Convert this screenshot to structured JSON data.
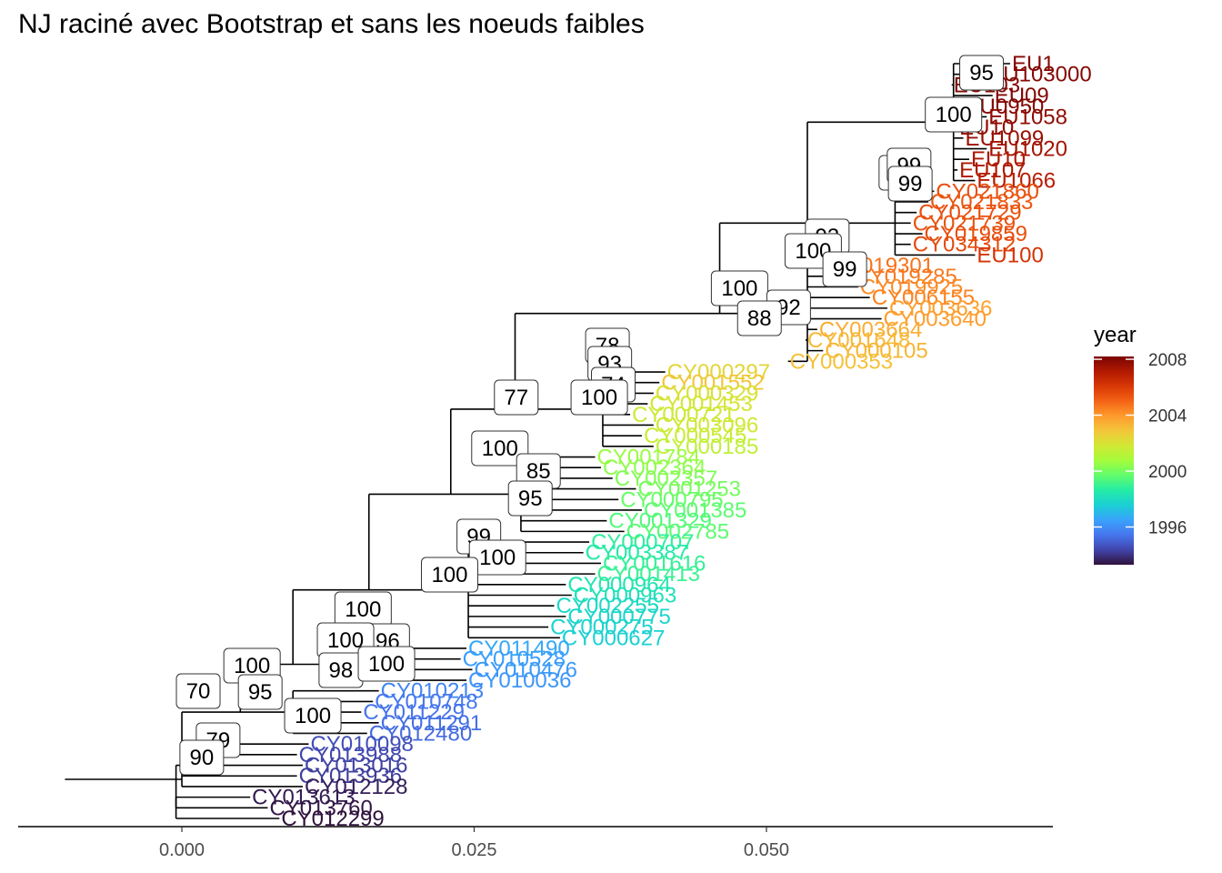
{
  "title": "NJ raciné avec Bootstrap et sans les noeuds faibles",
  "colors": {
    "branch": "#000000",
    "axis_tick_text": "#4d4d4d",
    "gradient": [
      "#30123b",
      "#4145ab",
      "#4675ed",
      "#39a2fc",
      "#1bcfd4",
      "#24eca6",
      "#61fc6c",
      "#a4fc3b",
      "#d1e834",
      "#f3c63a",
      "#fe9b2d",
      "#f36315",
      "#d93806",
      "#b11901",
      "#7a0403"
    ]
  },
  "chart_data": {
    "type": "tree",
    "xlim": [
      -0.014,
      0.0745
    ],
    "x_ticks": [
      0.0,
      0.025,
      0.05
    ],
    "x_tick_labels": [
      "0.000",
      "0.025",
      "0.050"
    ],
    "legend": {
      "title": "year",
      "position": "right",
      "range": [
        1993.3,
        2008.2
      ],
      "ticks": [
        1996,
        2000,
        2004,
        2008
      ],
      "tick_labels": [
        "1996",
        "2000",
        "2004",
        "2008"
      ]
    },
    "tips": [
      {
        "label": "EU1",
        "x": 0.071,
        "year": 2008
      },
      {
        "label": "EU103000",
        "x": 0.069,
        "year": 2008
      },
      {
        "label": "EU103",
        "x": 0.066,
        "year": 2008
      },
      {
        "label": "EU09",
        "x": 0.0695,
        "year": 2008
      },
      {
        "label": "EU0950",
        "x": 0.067,
        "year": 2008
      },
      {
        "label": "EU1058",
        "x": 0.069,
        "year": 2007.8
      },
      {
        "label": "EU10",
        "x": 0.0665,
        "year": 2007.8
      },
      {
        "label": "EU1099",
        "x": 0.067,
        "year": 2007.6
      },
      {
        "label": "EU1020",
        "x": 0.069,
        "year": 2007.4
      },
      {
        "label": "EU10",
        "x": 0.0675,
        "year": 2007.2
      },
      {
        "label": "EU107",
        "x": 0.0665,
        "year": 2007.2
      },
      {
        "label": "EU1066",
        "x": 0.068,
        "year": 2007
      },
      {
        "label": "CY021860",
        "x": 0.0645,
        "year": 2005.5
      },
      {
        "label": "CY021833",
        "x": 0.064,
        "year": 2005.3
      },
      {
        "label": "CY021729",
        "x": 0.063,
        "year": 2005.5
      },
      {
        "label": "CY021739",
        "x": 0.0625,
        "year": 2005.4
      },
      {
        "label": "CY019859",
        "x": 0.0635,
        "year": 2005.5
      },
      {
        "label": "CY034312",
        "x": 0.0625,
        "year": 2005.6
      },
      {
        "label": "EU100",
        "x": 0.068,
        "year": 2006.2
      },
      {
        "label": "CY019301",
        "x": 0.0555,
        "year": 2004.7
      },
      {
        "label": "CY019285",
        "x": 0.0575,
        "year": 2004.6
      },
      {
        "label": "CY019925",
        "x": 0.058,
        "year": 2004.2
      },
      {
        "label": "CY006155",
        "x": 0.059,
        "year": 2004.4
      },
      {
        "label": "CY003636",
        "x": 0.0605,
        "year": 2003.8
      },
      {
        "label": "CY003640",
        "x": 0.06,
        "year": 2003.9
      },
      {
        "label": "CY003664",
        "x": 0.0545,
        "year": 2003.5
      },
      {
        "label": "CY001648",
        "x": 0.0535,
        "year": 2003.2
      },
      {
        "label": "CY000105",
        "x": 0.055,
        "year": 2003.3
      },
      {
        "label": "CY000353",
        "x": 0.052,
        "year": 2003.0
      },
      {
        "label": "CY000297",
        "x": 0.0415,
        "year": 2002.4
      },
      {
        "label": "CY001552",
        "x": 0.041,
        "year": 2002.9
      },
      {
        "label": "CY000329",
        "x": 0.0405,
        "year": 2002.0
      },
      {
        "label": "CY001453",
        "x": 0.04,
        "year": 2001.9
      },
      {
        "label": "CY000721",
        "x": 0.0385,
        "year": 2001.7
      },
      {
        "label": "CY003096",
        "x": 0.0405,
        "year": 2001.8
      },
      {
        "label": "CY000545",
        "x": 0.0395,
        "year": 2001.6
      },
      {
        "label": "CY000185",
        "x": 0.0405,
        "year": 2001.4
      },
      {
        "label": "CY001784",
        "x": 0.0355,
        "year": 2000.6
      },
      {
        "label": "CY002364",
        "x": 0.036,
        "year": 2000.4
      },
      {
        "label": "CY002357",
        "x": 0.037,
        "year": 2000.2
      },
      {
        "label": "CY001253",
        "x": 0.039,
        "year": 2000.0
      },
      {
        "label": "CY000795",
        "x": 0.0375,
        "year": 1999.8
      },
      {
        "label": "CY001385",
        "x": 0.0395,
        "year": 1999.6
      },
      {
        "label": "CY001329",
        "x": 0.0365,
        "year": 1999.4
      },
      {
        "label": "CY002785",
        "x": 0.038,
        "year": 1999.6
      },
      {
        "label": "CY000707",
        "x": 0.035,
        "year": 1998.8
      },
      {
        "label": "CY003387",
        "x": 0.0345,
        "year": 1998.5
      },
      {
        "label": "CY001616",
        "x": 0.036,
        "year": 1998.9
      },
      {
        "label": "CY001413",
        "x": 0.0355,
        "year": 1999.0
      },
      {
        "label": "CY000964",
        "x": 0.033,
        "year": 1998.4
      },
      {
        "label": "CY000963",
        "x": 0.0335,
        "year": 1998.2
      },
      {
        "label": "CY002255",
        "x": 0.032,
        "year": 1997.9
      },
      {
        "label": "CY000775",
        "x": 0.033,
        "year": 1997.8
      },
      {
        "label": "CY000275",
        "x": 0.0315,
        "year": 1997.7
      },
      {
        "label": "CY000627",
        "x": 0.0325,
        "year": 1997.6
      },
      {
        "label": "CY011490",
        "x": 0.0245,
        "year": 1996.6
      },
      {
        "label": "CY010528",
        "x": 0.024,
        "year": 1996.4
      },
      {
        "label": "CY010476",
        "x": 0.025,
        "year": 1996.3
      },
      {
        "label": "CY010036",
        "x": 0.0245,
        "year": 1996.2
      },
      {
        "label": "CY010213",
        "x": 0.017,
        "year": 1995.8
      },
      {
        "label": "CY010748",
        "x": 0.0165,
        "year": 1995.5
      },
      {
        "label": "CY011229",
        "x": 0.0155,
        "year": 1995.4
      },
      {
        "label": "CY011291",
        "x": 0.017,
        "year": 1995.3
      },
      {
        "label": "CY012480",
        "x": 0.016,
        "year": 1995.2
      },
      {
        "label": "CY010098",
        "x": 0.011,
        "year": 1994.6
      },
      {
        "label": "CY013988",
        "x": 0.01,
        "year": 1994.4
      },
      {
        "label": "CY013016",
        "x": 0.0105,
        "year": 1994.3
      },
      {
        "label": "CY013936",
        "x": 0.01,
        "year": 1994.2
      },
      {
        "label": "CY012128",
        "x": 0.0105,
        "year": 1993.6
      },
      {
        "label": "CY013613",
        "x": 0.006,
        "year": 1993.5
      },
      {
        "label": "CY013760",
        "x": 0.0075,
        "year": 1993.4
      },
      {
        "label": "CY012299",
        "x": 0.0085,
        "year": 1993.3
      }
    ],
    "bootstrap": [
      {
        "value": "95",
        "x": 0.0684
      },
      {
        "value": "100",
        "x": 0.066
      },
      {
        "value": "99",
        "x": 0.0615
      },
      {
        "value": "99",
        "x": 0.0622
      },
      {
        "value": "99",
        "x": 0.0623
      },
      {
        "value": "93",
        "x": 0.0552
      },
      {
        "value": "100",
        "x": 0.054
      },
      {
        "value": "99",
        "x": 0.0567
      },
      {
        "value": "100",
        "x": 0.0477
      },
      {
        "value": "92",
        "x": 0.0519
      },
      {
        "value": "88",
        "x": 0.0494
      },
      {
        "value": "78",
        "x": 0.0364
      },
      {
        "value": "93",
        "x": 0.0366
      },
      {
        "value": "74",
        "x": 0.0369
      },
      {
        "value": "100",
        "x": 0.0357
      },
      {
        "value": "77",
        "x": 0.0286
      },
      {
        "value": "100",
        "x": 0.0272
      },
      {
        "value": "85",
        "x": 0.0305
      },
      {
        "value": "95",
        "x": 0.0298
      },
      {
        "value": "99",
        "x": 0.0254
      },
      {
        "value": "100",
        "x": 0.027
      },
      {
        "value": "100",
        "x": 0.0229
      },
      {
        "value": "100",
        "x": 0.0155
      },
      {
        "value": "96",
        "x": 0.0176
      },
      {
        "value": "100",
        "x": 0.014
      },
      {
        "value": "98",
        "x": 0.0136
      },
      {
        "value": "100",
        "x": 0.0175
      },
      {
        "value": "100",
        "x": 0.006
      },
      {
        "value": "95",
        "x": 0.0067
      },
      {
        "value": "70",
        "x": 0.0014
      },
      {
        "value": "100",
        "x": 0.0112
      },
      {
        "value": "79",
        "x": 0.0031
      },
      {
        "value": "90",
        "x": 0.0017
      }
    ]
  }
}
